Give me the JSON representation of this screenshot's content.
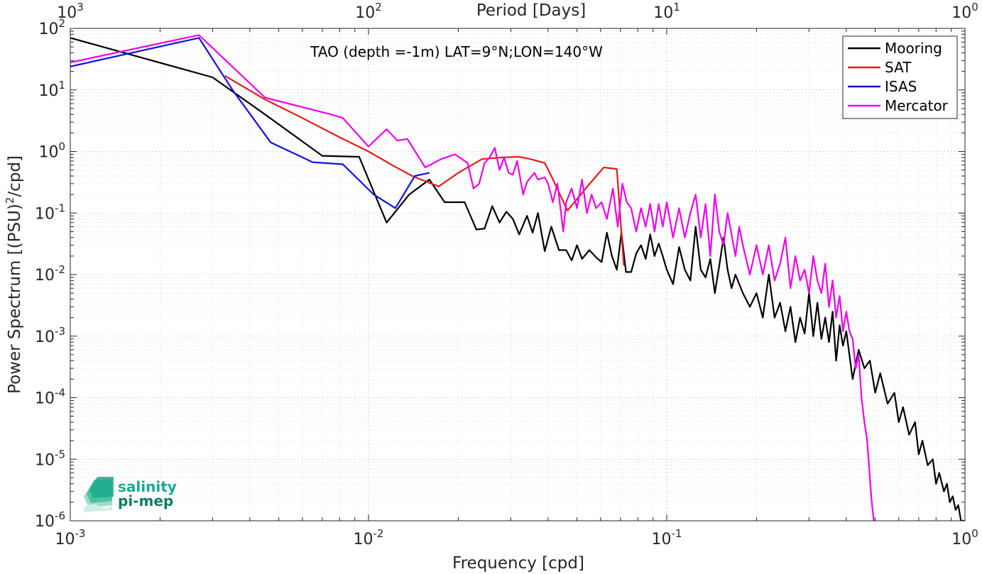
{
  "chart_data": {
    "type": "line",
    "annotation": "TAO (depth =-1m) LAT=9°N;LON=140°W",
    "xlabel": "Frequency [cpd]",
    "x2label": "Period [Days]",
    "ylabel": "Power Spectrum [(PSU)",
    "ylabel_sup": "2",
    "ylabel_tail": "/cpd]",
    "xscale": "log",
    "yscale": "log",
    "xlim": [
      0.001,
      1
    ],
    "ylim": [
      1e-06,
      100
    ],
    "grid": true,
    "minor_grid": true,
    "legend_position": "top-right",
    "x_ticks": [
      {
        "value": 0.001,
        "base": "10",
        "exp": "-3"
      },
      {
        "value": 0.01,
        "base": "10",
        "exp": "-2"
      },
      {
        "value": 0.1,
        "base": "10",
        "exp": "-1"
      },
      {
        "value": 1,
        "base": "10",
        "exp": "0"
      }
    ],
    "x2_ticks": [
      {
        "value": 0.001,
        "base": "10",
        "exp": "3"
      },
      {
        "value": 0.01,
        "base": "10",
        "exp": "2"
      },
      {
        "value": 0.1,
        "base": "10",
        "exp": "1"
      },
      {
        "value": 1,
        "base": "10",
        "exp": "0"
      }
    ],
    "y_ticks": [
      {
        "value": 100,
        "base": "10",
        "exp": "2"
      },
      {
        "value": 10,
        "base": "10",
        "exp": "1"
      },
      {
        "value": 1,
        "base": "10",
        "exp": "0"
      },
      {
        "value": 0.1,
        "base": "10",
        "exp": "-1"
      },
      {
        "value": 0.01,
        "base": "10",
        "exp": "-2"
      },
      {
        "value": 0.001,
        "base": "10",
        "exp": "-3"
      },
      {
        "value": 0.0001,
        "base": "10",
        "exp": "-4"
      },
      {
        "value": 1e-05,
        "base": "10",
        "exp": "-5"
      },
      {
        "value": 1e-06,
        "base": "10",
        "exp": "-6"
      }
    ],
    "series": [
      {
        "name": "Mooring",
        "color": "#000000",
        "x": [
          0.001,
          0.003,
          0.0045,
          0.007,
          0.0093,
          0.0115,
          0.0137,
          0.016,
          0.018,
          0.021,
          0.023,
          0.0245,
          0.026,
          0.0275,
          0.029,
          0.0305,
          0.032,
          0.034,
          0.0355,
          0.037,
          0.039,
          0.041,
          0.0435,
          0.046,
          0.048,
          0.05,
          0.052,
          0.055,
          0.058,
          0.0605,
          0.063,
          0.0655,
          0.068,
          0.0705,
          0.073,
          0.076,
          0.079,
          0.082,
          0.085,
          0.088,
          0.091,
          0.094,
          0.097,
          0.1,
          0.105,
          0.11,
          0.115,
          0.12,
          0.125,
          0.13,
          0.135,
          0.14,
          0.145,
          0.15,
          0.155,
          0.16,
          0.165,
          0.17,
          0.175,
          0.18,
          0.19,
          0.2,
          0.21,
          0.22,
          0.23,
          0.24,
          0.25,
          0.26,
          0.27,
          0.28,
          0.29,
          0.3,
          0.31,
          0.32,
          0.33,
          0.34,
          0.35,
          0.36,
          0.37,
          0.38,
          0.39,
          0.4,
          0.42,
          0.44,
          0.46,
          0.48,
          0.5,
          0.52,
          0.55,
          0.58,
          0.6,
          0.62,
          0.65,
          0.68,
          0.7,
          0.72,
          0.75,
          0.78,
          0.8,
          0.82,
          0.85,
          0.87,
          0.89,
          0.91,
          0.93,
          0.95,
          0.97,
          1.0
        ],
        "y": [
          70,
          16,
          4,
          0.85,
          0.82,
          0.07,
          0.2,
          0.35,
          0.15,
          0.15,
          0.054,
          0.056,
          0.13,
          0.07,
          0.105,
          0.08,
          0.045,
          0.09,
          0.048,
          0.1,
          0.024,
          0.06,
          0.025,
          0.025,
          0.017,
          0.03,
          0.018,
          0.025,
          0.019,
          0.016,
          0.048,
          0.02,
          0.012,
          0.048,
          0.011,
          0.011,
          0.022,
          0.03,
          0.018,
          0.045,
          0.02,
          0.032,
          0.02,
          0.012,
          0.007,
          0.028,
          0.012,
          0.008,
          0.06,
          0.012,
          0.009,
          0.018,
          0.005,
          0.014,
          0.04,
          0.012,
          0.006,
          0.01,
          0.007,
          0.005,
          0.003,
          0.005,
          0.002,
          0.01,
          0.002,
          0.0035,
          0.0012,
          0.003,
          0.0008,
          0.002,
          0.0011,
          0.005,
          0.001,
          0.0035,
          0.0009,
          0.002,
          0.0008,
          0.0025,
          0.0004,
          0.0015,
          0.0007,
          0.0012,
          0.0002,
          0.0006,
          0.0003,
          0.0004,
          0.00012,
          0.00025,
          8e-05,
          0.00012,
          4e-05,
          7e-05,
          2.5e-05,
          4e-05,
          1.2e-05,
          2e-05,
          8e-06,
          1e-05,
          4e-06,
          6e-06,
          3e-06,
          4e-06,
          2e-06,
          2.5e-06,
          1.5e-06,
          1.8e-06,
          1e-06,
          1e-06
        ]
      },
      {
        "name": "SAT",
        "color": "#e41a1a",
        "x": [
          0.0033,
          0.0045,
          0.006,
          0.008,
          0.01,
          0.012,
          0.014,
          0.0172,
          0.02,
          0.024,
          0.028,
          0.032,
          0.035,
          0.039,
          0.041,
          0.0465,
          0.0545,
          0.0615,
          0.068,
          0.0718
        ],
        "y": [
          17,
          7,
          3.5,
          1.7,
          1.0,
          0.6,
          0.4,
          0.27,
          0.45,
          0.75,
          0.8,
          0.82,
          0.75,
          0.65,
          0.4,
          0.11,
          0.28,
          0.55,
          0.52,
          0.014
        ]
      },
      {
        "name": "ISAS",
        "color": "#1010e0",
        "x": [
          0.001,
          0.0027,
          0.0035,
          0.0047,
          0.0065,
          0.0082,
          0.0104,
          0.0123,
          0.0143,
          0.016
        ],
        "y": [
          24,
          70,
          10,
          1.4,
          0.67,
          0.62,
          0.2,
          0.12,
          0.4,
          0.45
        ]
      },
      {
        "name": "Mercator",
        "color": "#ee00ee",
        "x": [
          0.001,
          0.0027,
          0.0045,
          0.0075,
          0.0082,
          0.01,
          0.0115,
          0.0125,
          0.0135,
          0.0155,
          0.0175,
          0.0195,
          0.0215,
          0.0225,
          0.0235,
          0.0245,
          0.0255,
          0.0265,
          0.0275,
          0.0285,
          0.0295,
          0.0305,
          0.0315,
          0.033,
          0.034,
          0.036,
          0.037,
          0.039,
          0.04,
          0.0415,
          0.043,
          0.045,
          0.046,
          0.048,
          0.05,
          0.052,
          0.054,
          0.056,
          0.058,
          0.0605,
          0.063,
          0.066,
          0.0685,
          0.071,
          0.0735,
          0.076,
          0.079,
          0.082,
          0.085,
          0.088,
          0.091,
          0.094,
          0.097,
          0.1,
          0.105,
          0.11,
          0.115,
          0.12,
          0.125,
          0.13,
          0.135,
          0.14,
          0.145,
          0.15,
          0.155,
          0.16,
          0.165,
          0.17,
          0.175,
          0.18,
          0.19,
          0.2,
          0.21,
          0.22,
          0.23,
          0.24,
          0.25,
          0.26,
          0.27,
          0.28,
          0.29,
          0.3,
          0.31,
          0.32,
          0.33,
          0.34,
          0.35,
          0.36,
          0.37,
          0.38,
          0.39,
          0.4,
          0.41,
          0.42,
          0.43,
          0.44,
          0.45,
          0.46,
          0.47,
          0.475,
          0.48,
          0.485,
          0.49,
          0.495
        ],
        "y": [
          28,
          78,
          7.5,
          4,
          3.5,
          1.2,
          2.3,
          1.5,
          1.6,
          0.55,
          0.75,
          0.9,
          0.65,
          0.25,
          0.3,
          0.65,
          0.8,
          1.15,
          0.5,
          0.8,
          0.45,
          0.42,
          0.7,
          0.2,
          0.32,
          0.45,
          0.35,
          0.38,
          0.3,
          0.15,
          0.3,
          0.05,
          0.15,
          0.25,
          0.12,
          0.35,
          0.1,
          0.2,
          0.12,
          0.15,
          0.08,
          0.25,
          0.06,
          0.3,
          0.15,
          0.12,
          0.05,
          0.12,
          0.06,
          0.14,
          0.05,
          0.14,
          0.06,
          0.15,
          0.04,
          0.12,
          0.04,
          0.1,
          0.2,
          0.04,
          0.14,
          0.02,
          0.2,
          0.05,
          0.03,
          0.1,
          0.045,
          0.02,
          0.06,
          0.03,
          0.01,
          0.03,
          0.01,
          0.03,
          0.008,
          0.015,
          0.04,
          0.006,
          0.02,
          0.008,
          0.012,
          0.005,
          0.02,
          0.008,
          0.005,
          0.015,
          0.003,
          0.008,
          0.002,
          0.0045,
          0.0012,
          0.0025,
          0.0012,
          0.0009,
          0.0003,
          0.0005,
          0.0001,
          4e-05,
          2e-05,
          1e-05,
          5e-06,
          2.5e-06,
          1.5e-06,
          1e-06
        ]
      }
    ]
  },
  "logo": {
    "line1": "salinity",
    "line2": "pi-mep",
    "color1": "#1aaa8e",
    "color2": "#127a68"
  }
}
